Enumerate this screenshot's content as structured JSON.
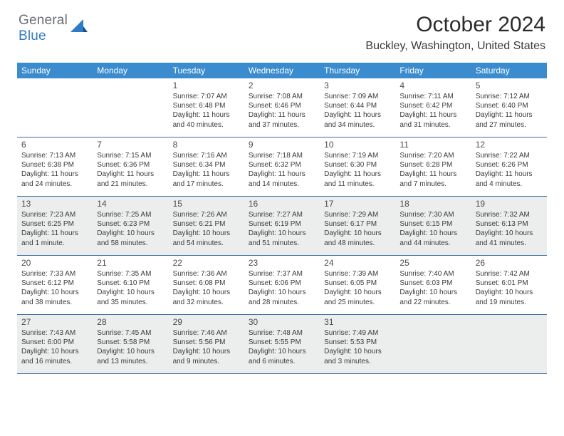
{
  "brand": {
    "part1": "General",
    "part2": "Blue"
  },
  "title": "October 2024",
  "location": "Buckley, Washington, United States",
  "colors": {
    "header_bg": "#3a8ccf",
    "week_border": "#3a6fa8",
    "alt_row_bg": "#eceded",
    "logo_gray": "#6a6e73",
    "logo_blue": "#2f7ac4"
  },
  "daysOfWeek": [
    "Sunday",
    "Monday",
    "Tuesday",
    "Wednesday",
    "Thursday",
    "Friday",
    "Saturday"
  ],
  "weeks": [
    {
      "alt": false,
      "days": [
        {
          "n": "",
          "sr": "",
          "ss": "",
          "dl": ""
        },
        {
          "n": "",
          "sr": "",
          "ss": "",
          "dl": ""
        },
        {
          "n": "1",
          "sr": "Sunrise: 7:07 AM",
          "ss": "Sunset: 6:48 PM",
          "dl": "Daylight: 11 hours and 40 minutes."
        },
        {
          "n": "2",
          "sr": "Sunrise: 7:08 AM",
          "ss": "Sunset: 6:46 PM",
          "dl": "Daylight: 11 hours and 37 minutes."
        },
        {
          "n": "3",
          "sr": "Sunrise: 7:09 AM",
          "ss": "Sunset: 6:44 PM",
          "dl": "Daylight: 11 hours and 34 minutes."
        },
        {
          "n": "4",
          "sr": "Sunrise: 7:11 AM",
          "ss": "Sunset: 6:42 PM",
          "dl": "Daylight: 11 hours and 31 minutes."
        },
        {
          "n": "5",
          "sr": "Sunrise: 7:12 AM",
          "ss": "Sunset: 6:40 PM",
          "dl": "Daylight: 11 hours and 27 minutes."
        }
      ]
    },
    {
      "alt": false,
      "days": [
        {
          "n": "6",
          "sr": "Sunrise: 7:13 AM",
          "ss": "Sunset: 6:38 PM",
          "dl": "Daylight: 11 hours and 24 minutes."
        },
        {
          "n": "7",
          "sr": "Sunrise: 7:15 AM",
          "ss": "Sunset: 6:36 PM",
          "dl": "Daylight: 11 hours and 21 minutes."
        },
        {
          "n": "8",
          "sr": "Sunrise: 7:16 AM",
          "ss": "Sunset: 6:34 PM",
          "dl": "Daylight: 11 hours and 17 minutes."
        },
        {
          "n": "9",
          "sr": "Sunrise: 7:18 AM",
          "ss": "Sunset: 6:32 PM",
          "dl": "Daylight: 11 hours and 14 minutes."
        },
        {
          "n": "10",
          "sr": "Sunrise: 7:19 AM",
          "ss": "Sunset: 6:30 PM",
          "dl": "Daylight: 11 hours and 11 minutes."
        },
        {
          "n": "11",
          "sr": "Sunrise: 7:20 AM",
          "ss": "Sunset: 6:28 PM",
          "dl": "Daylight: 11 hours and 7 minutes."
        },
        {
          "n": "12",
          "sr": "Sunrise: 7:22 AM",
          "ss": "Sunset: 6:26 PM",
          "dl": "Daylight: 11 hours and 4 minutes."
        }
      ]
    },
    {
      "alt": true,
      "days": [
        {
          "n": "13",
          "sr": "Sunrise: 7:23 AM",
          "ss": "Sunset: 6:25 PM",
          "dl": "Daylight: 11 hours and 1 minute."
        },
        {
          "n": "14",
          "sr": "Sunrise: 7:25 AM",
          "ss": "Sunset: 6:23 PM",
          "dl": "Daylight: 10 hours and 58 minutes."
        },
        {
          "n": "15",
          "sr": "Sunrise: 7:26 AM",
          "ss": "Sunset: 6:21 PM",
          "dl": "Daylight: 10 hours and 54 minutes."
        },
        {
          "n": "16",
          "sr": "Sunrise: 7:27 AM",
          "ss": "Sunset: 6:19 PM",
          "dl": "Daylight: 10 hours and 51 minutes."
        },
        {
          "n": "17",
          "sr": "Sunrise: 7:29 AM",
          "ss": "Sunset: 6:17 PM",
          "dl": "Daylight: 10 hours and 48 minutes."
        },
        {
          "n": "18",
          "sr": "Sunrise: 7:30 AM",
          "ss": "Sunset: 6:15 PM",
          "dl": "Daylight: 10 hours and 44 minutes."
        },
        {
          "n": "19",
          "sr": "Sunrise: 7:32 AM",
          "ss": "Sunset: 6:13 PM",
          "dl": "Daylight: 10 hours and 41 minutes."
        }
      ]
    },
    {
      "alt": false,
      "days": [
        {
          "n": "20",
          "sr": "Sunrise: 7:33 AM",
          "ss": "Sunset: 6:12 PM",
          "dl": "Daylight: 10 hours and 38 minutes."
        },
        {
          "n": "21",
          "sr": "Sunrise: 7:35 AM",
          "ss": "Sunset: 6:10 PM",
          "dl": "Daylight: 10 hours and 35 minutes."
        },
        {
          "n": "22",
          "sr": "Sunrise: 7:36 AM",
          "ss": "Sunset: 6:08 PM",
          "dl": "Daylight: 10 hours and 32 minutes."
        },
        {
          "n": "23",
          "sr": "Sunrise: 7:37 AM",
          "ss": "Sunset: 6:06 PM",
          "dl": "Daylight: 10 hours and 28 minutes."
        },
        {
          "n": "24",
          "sr": "Sunrise: 7:39 AM",
          "ss": "Sunset: 6:05 PM",
          "dl": "Daylight: 10 hours and 25 minutes."
        },
        {
          "n": "25",
          "sr": "Sunrise: 7:40 AM",
          "ss": "Sunset: 6:03 PM",
          "dl": "Daylight: 10 hours and 22 minutes."
        },
        {
          "n": "26",
          "sr": "Sunrise: 7:42 AM",
          "ss": "Sunset: 6:01 PM",
          "dl": "Daylight: 10 hours and 19 minutes."
        }
      ]
    },
    {
      "alt": true,
      "days": [
        {
          "n": "27",
          "sr": "Sunrise: 7:43 AM",
          "ss": "Sunset: 6:00 PM",
          "dl": "Daylight: 10 hours and 16 minutes."
        },
        {
          "n": "28",
          "sr": "Sunrise: 7:45 AM",
          "ss": "Sunset: 5:58 PM",
          "dl": "Daylight: 10 hours and 13 minutes."
        },
        {
          "n": "29",
          "sr": "Sunrise: 7:46 AM",
          "ss": "Sunset: 5:56 PM",
          "dl": "Daylight: 10 hours and 9 minutes."
        },
        {
          "n": "30",
          "sr": "Sunrise: 7:48 AM",
          "ss": "Sunset: 5:55 PM",
          "dl": "Daylight: 10 hours and 6 minutes."
        },
        {
          "n": "31",
          "sr": "Sunrise: 7:49 AM",
          "ss": "Sunset: 5:53 PM",
          "dl": "Daylight: 10 hours and 3 minutes."
        },
        {
          "n": "",
          "sr": "",
          "ss": "",
          "dl": ""
        },
        {
          "n": "",
          "sr": "",
          "ss": "",
          "dl": ""
        }
      ]
    }
  ]
}
